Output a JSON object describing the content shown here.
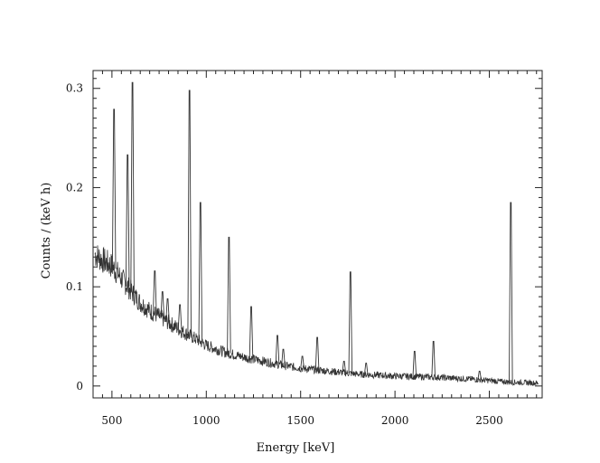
{
  "chart_data": {
    "type": "line",
    "title": "",
    "xlabel": "Energy [keV]",
    "ylabel": "Counts / (keV h)",
    "xlim": [
      400,
      2780
    ],
    "ylim": [
      -0.012,
      0.318
    ],
    "x_ticks": [
      500,
      1000,
      1500,
      2000,
      2500
    ],
    "y_ticks": [
      0,
      0.1,
      0.2,
      0.3
    ],
    "x_tick_labels": [
      "500",
      "1000",
      "1500",
      "2000",
      "2500"
    ],
    "y_tick_labels": [
      "0",
      "0.1",
      "0.2",
      "0.3"
    ],
    "grid": false,
    "legend": "none",
    "line_color": "#333333",
    "continuum": [
      [
        410,
        0.133
      ],
      [
        450,
        0.127
      ],
      [
        500,
        0.121
      ],
      [
        560,
        0.106
      ],
      [
        600,
        0.096
      ],
      [
        650,
        0.084
      ],
      [
        700,
        0.076
      ],
      [
        750,
        0.07
      ],
      [
        800,
        0.064
      ],
      [
        850,
        0.058
      ],
      [
        900,
        0.052
      ],
      [
        950,
        0.047
      ],
      [
        1000,
        0.041
      ],
      [
        1100,
        0.034
      ],
      [
        1200,
        0.029
      ],
      [
        1300,
        0.025
      ],
      [
        1400,
        0.021
      ],
      [
        1500,
        0.018
      ],
      [
        1600,
        0.016
      ],
      [
        1700,
        0.014
      ],
      [
        1800,
        0.012
      ],
      [
        1900,
        0.011
      ],
      [
        2000,
        0.01
      ],
      [
        2200,
        0.009
      ],
      [
        2400,
        0.007
      ],
      [
        2600,
        0.004
      ],
      [
        2760,
        0.003
      ]
    ],
    "peaks": [
      {
        "energy": 511,
        "counts": 0.279
      },
      {
        "energy": 583,
        "counts": 0.233
      },
      {
        "energy": 609,
        "counts": 0.306
      },
      {
        "energy": 727,
        "counts": 0.116
      },
      {
        "energy": 768,
        "counts": 0.095
      },
      {
        "energy": 795,
        "counts": 0.088
      },
      {
        "energy": 860,
        "counts": 0.082
      },
      {
        "energy": 911,
        "counts": 0.298
      },
      {
        "energy": 969,
        "counts": 0.185
      },
      {
        "energy": 1120,
        "counts": 0.15
      },
      {
        "energy": 1238,
        "counts": 0.08
      },
      {
        "energy": 1377,
        "counts": 0.051
      },
      {
        "energy": 1408,
        "counts": 0.037
      },
      {
        "energy": 1509,
        "counts": 0.03
      },
      {
        "energy": 1588,
        "counts": 0.049
      },
      {
        "energy": 1730,
        "counts": 0.025
      },
      {
        "energy": 1764,
        "counts": 0.115
      },
      {
        "energy": 1847,
        "counts": 0.023
      },
      {
        "energy": 2104,
        "counts": 0.035
      },
      {
        "energy": 2204,
        "counts": 0.045
      },
      {
        "energy": 2448,
        "counts": 0.015
      },
      {
        "energy": 2614,
        "counts": 0.185
      }
    ]
  }
}
